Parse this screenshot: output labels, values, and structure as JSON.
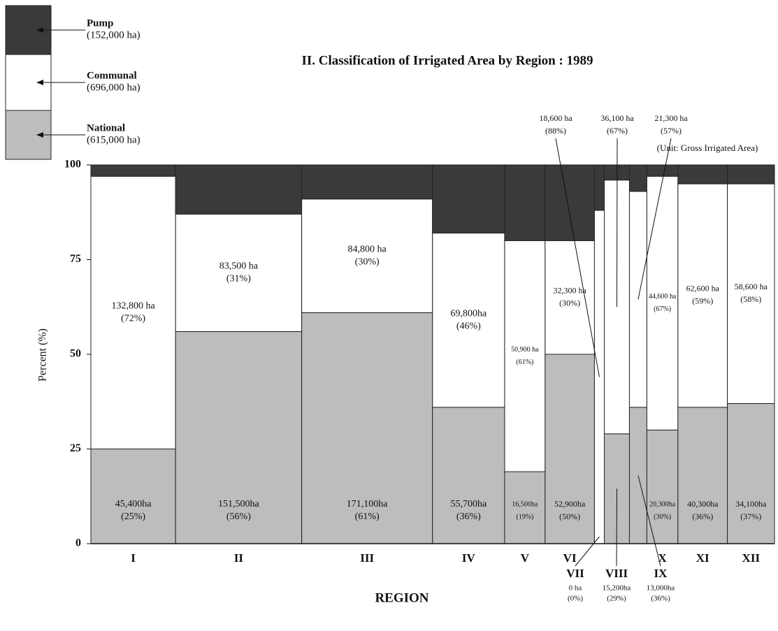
{
  "chart_data": {
    "type": "mekko",
    "title": "II.    Classification of Irrigated Area by Region  :  1989",
    "subtitle": "(Unit: Gross Irrigated Area)",
    "x_label": "REGION",
    "y_label": "Percent (%)",
    "categories": [
      "I",
      "II",
      "III",
      "IV",
      "V",
      "VI",
      "VII",
      "VIII",
      "IX",
      "X",
      "XI",
      "XII"
    ],
    "widths": [
      181600,
      270500,
      280500,
      154700,
      86800,
      105800,
      21100,
      53900,
      37400,
      66600,
      106100,
      101000
    ],
    "ylim": [
      0,
      100
    ],
    "yticks": [
      0,
      25,
      50,
      75,
      100
    ],
    "series": [
      {
        "name": "National",
        "total_label": "(615,000 ha)",
        "color": "#bdbdbd",
        "values": [
          25,
          56,
          61,
          36,
          19,
          50,
          0,
          29,
          36,
          30,
          36,
          37
        ],
        "area_labels": [
          "45,400ha",
          "151,500ha",
          "171,100ha",
          "55,700ha",
          "16,500ha",
          "52,900ha",
          "0 ha",
          "15,200ha",
          "13,000ha",
          "20,300ha",
          "40,300ha",
          "34,100ha"
        ],
        "value_labels": [
          "(25%)",
          "(56%)",
          "(61%)",
          "(36%)",
          "(19%)",
          "(50%)",
          "(0%)",
          "(29%)",
          "(36%)",
          "(30%)",
          "(36%)",
          "(37%)"
        ]
      },
      {
        "name": "Communal",
        "total_label": "(696,000 ha)",
        "color": "#ffffff",
        "values": [
          72,
          31,
          30,
          46,
          61,
          30,
          88,
          67,
          57,
          67,
          59,
          58
        ],
        "area_labels": [
          "132,800 ha",
          "83,500 ha",
          "84,800 ha",
          "69,800ha",
          "50,900 ha",
          "32,300 ha",
          "18,600 ha",
          "36,100 ha",
          "21,300 ha",
          "44,600 ha",
          "62,600 ha",
          "58,600 ha"
        ],
        "value_labels": [
          "(72%)",
          "(31%)",
          "(30%)",
          "(46%)",
          "(61%)",
          "(30%)",
          "(88%)",
          "(67%)",
          "(57%)",
          "(67%)",
          "(59%)",
          "(58%)"
        ]
      },
      {
        "name": "Pump",
        "total_label": "(152,000 ha)",
        "color": "#3a3a3a",
        "values": [
          3,
          13,
          9,
          18,
          20,
          20,
          12,
          4,
          7,
          3,
          5,
          5
        ]
      }
    ]
  }
}
